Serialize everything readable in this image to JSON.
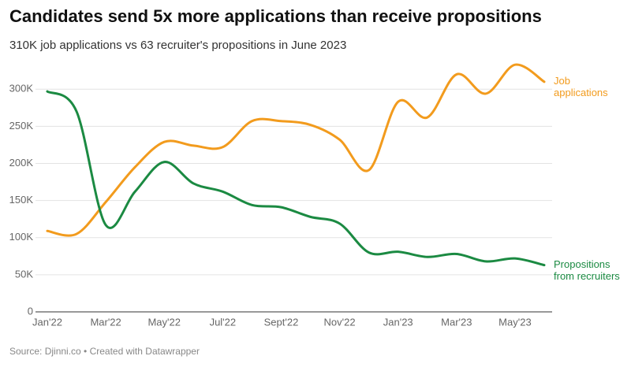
{
  "chart_data": {
    "type": "line",
    "title": "Candidates send 5x more applications than receive propositions",
    "subtitle": "310K job applications vs 63 recruiter's propositions in June 2023",
    "source": "Source: Djinni.co • Created with Datawrapper",
    "categories": [
      "Jan'22",
      null,
      "Mar'22",
      null,
      "May'22",
      null,
      "Jul'22",
      null,
      "Sept'22",
      null,
      "Nov'22",
      null,
      "Jan'23",
      null,
      "Mar'23",
      null,
      "May'23",
      null
    ],
    "series": [
      {
        "name": "Job applications",
        "color": "#f29b1d",
        "values": [
          109000,
          105000,
          148000,
          195000,
          229000,
          224000,
          222000,
          257000,
          257000,
          252000,
          232000,
          191000,
          283000,
          262000,
          320000,
          294000,
          333000,
          310000
        ]
      },
      {
        "name": "Propositions from recruiters",
        "color": "#1b8a42",
        "values": [
          297000,
          270000,
          117000,
          162000,
          202000,
          173000,
          162000,
          144000,
          141000,
          128000,
          119000,
          80000,
          81000,
          74000,
          78000,
          68000,
          72000,
          63000
        ]
      }
    ],
    "ylim": [
      0,
      330000
    ],
    "yticks": [
      0,
      {
        "value": 50000,
        "label": "50K"
      },
      {
        "value": 100000,
        "label": "100K"
      },
      {
        "value": 150000,
        "label": "150K"
      },
      {
        "value": 200000,
        "label": "200K"
      },
      {
        "value": 250000,
        "label": "250K"
      },
      {
        "value": 300000,
        "label": "300K"
      }
    ],
    "grid": true
  }
}
